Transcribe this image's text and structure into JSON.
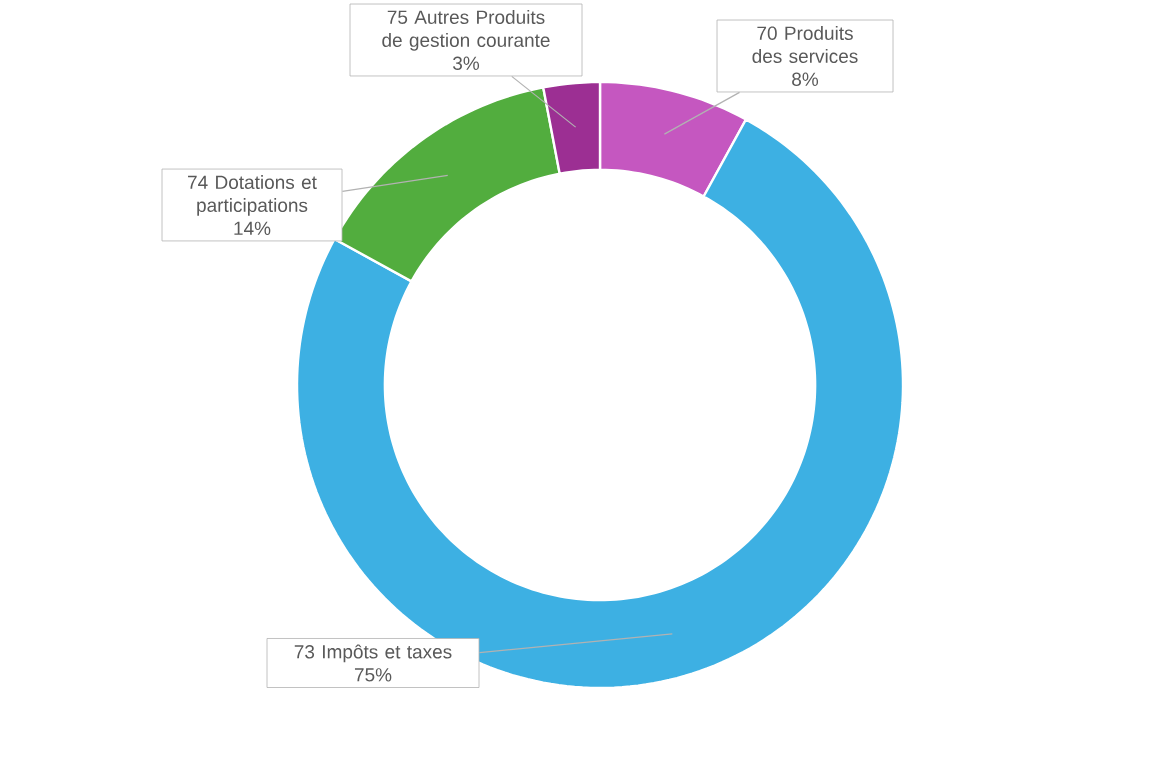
{
  "chart_data": {
    "type": "donut",
    "categories": [
      "70 Produits des services",
      "73 Impôts et taxes",
      "74 Dotations et participations",
      "75 Autres Produits de gestion courante"
    ],
    "values": [
      8,
      75,
      14,
      3
    ],
    "value_labels": [
      "8%",
      "75%",
      "14%",
      "3%"
    ],
    "colors": [
      "#c557c0",
      "#3db0e3",
      "#52ad3e",
      "#9c2f93"
    ],
    "legend": false
  }
}
